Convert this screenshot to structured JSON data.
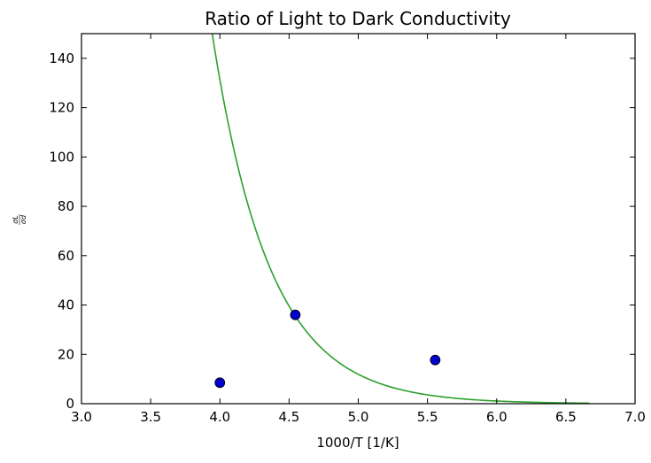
{
  "chart_data": {
    "type": "scatter",
    "title": "Ratio of Light to Dark Conductivity",
    "xlabel": "1000/T [1/K]",
    "ylabel": {
      "numerator": "σL",
      "denominator": "σd"
    },
    "xlim": [
      3.0,
      7.0
    ],
    "ylim": [
      0,
      150
    ],
    "xticks": [
      "3.0",
      "3.5",
      "4.0",
      "4.5",
      "5.0",
      "5.5",
      "6.0",
      "6.5",
      "7.0"
    ],
    "yticks": [
      "0",
      "20",
      "40",
      "60",
      "80",
      "100",
      "120",
      "140"
    ],
    "grid": false,
    "series": [
      {
        "kind": "points",
        "color": "#0000cc",
        "x": [
          4.0,
          4.545,
          5.556
        ],
        "y": [
          8.5,
          36.0,
          17.7
        ]
      },
      {
        "kind": "fit-curve",
        "color": "#2ca02c",
        "x_range": [
          3.86,
          6.67
        ],
        "model": "exponential",
        "a": 35.5,
        "b": 2.4,
        "x0": 4.545
      }
    ]
  }
}
